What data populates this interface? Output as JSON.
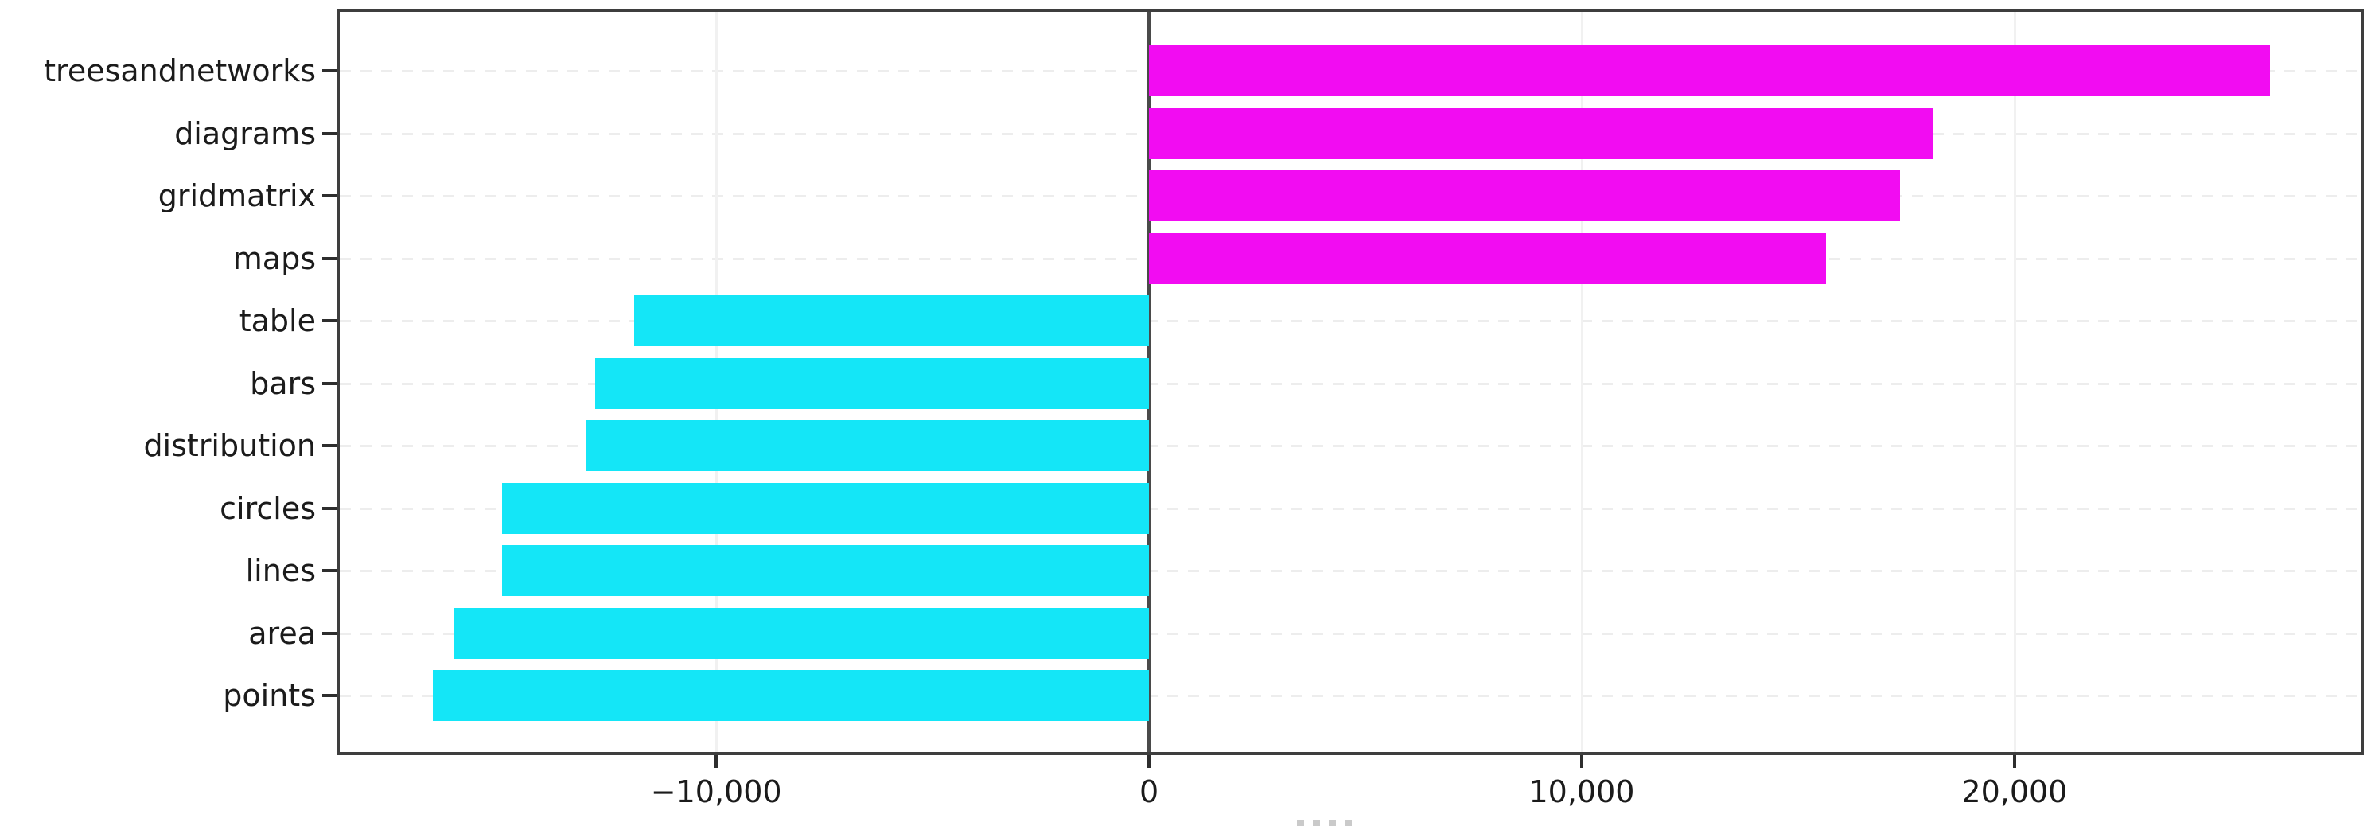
{
  "chart_data": {
    "type": "bar",
    "orientation": "horizontal",
    "title": "",
    "xlabel": "",
    "ylabel": "",
    "legend": "none",
    "grid": true,
    "categories": [
      "treesandnetworks",
      "diagrams",
      "gridmatrix",
      "maps",
      "table",
      "bars",
      "distribution",
      "circles",
      "lines",
      "area",
      "points"
    ],
    "values": [
      25900,
      18100,
      17350,
      15650,
      -11900,
      -12800,
      -13000,
      -14950,
      -14950,
      -16050,
      -16550
    ],
    "xlim": [
      -18700,
      28000
    ],
    "x_ticks": [
      {
        "value": -10000,
        "label": "−10,000"
      },
      {
        "value": 0,
        "label": "0"
      },
      {
        "value": 10000,
        "label": "10,000"
      },
      {
        "value": 20000,
        "label": "20,000"
      }
    ],
    "colors": {
      "positive": "#F20CF2",
      "negative": "#14E6F7",
      "zero_line": "#4A4A4A",
      "spine": "#3E3E3E",
      "grid": "#EDEDED",
      "text": "#1B1B1B"
    }
  }
}
